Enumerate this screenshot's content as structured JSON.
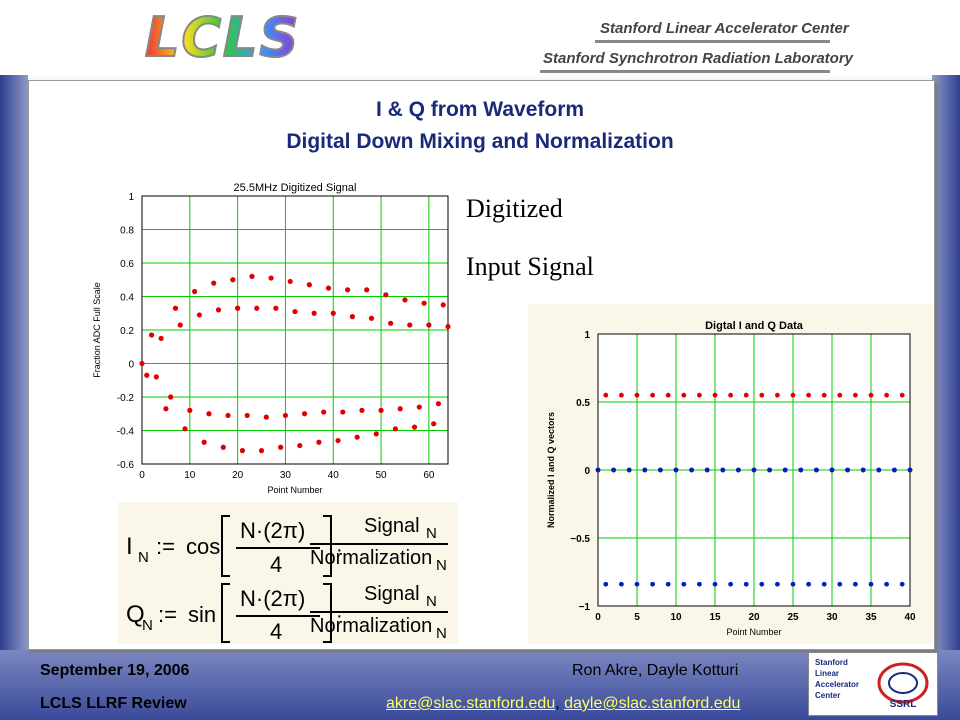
{
  "header": {
    "logo": "LCLS",
    "lab_line1": "Stanford Linear Accelerator Center",
    "lab_line2": "Stanford Synchrotron Radiation Laboratory"
  },
  "title": {
    "line1": "I & Q from Waveform",
    "line2": "Digital Down Mixing and Normalization"
  },
  "captions": {
    "line1": "Digitized",
    "line2": "Input Signal"
  },
  "formula": {
    "i_lhs": "I",
    "q_lhs": "Q",
    "sub": "N",
    "assign": ":=",
    "cos": "cos",
    "sin": "sin",
    "num_frac": "N·(2π)",
    "den_frac": "4",
    "signal": "Signal",
    "normalization": "Normalization"
  },
  "footer": {
    "date": "September 19, 2006",
    "event": "LCLS LLRF Review",
    "authors": "Ron Akre, Dayle Kotturi",
    "email1": "akre@slac.stanford.edu",
    "separator": ", ",
    "email2": "dayle@slac.stanford.edu"
  },
  "slac_logo": {
    "lines": [
      "Stanford",
      "Linear",
      "Accelerator",
      "Center"
    ],
    "ssrl": "SSRL"
  },
  "colors": {
    "title": "#1a2a7a",
    "grid": "#00cc00",
    "point_red": "#e00000",
    "point_blue": "#0020c0",
    "link": "#ffff66"
  },
  "chart_data": [
    {
      "type": "scatter",
      "title": "25.5MHz Digitized Signal",
      "xlabel": "Point Number",
      "ylabel": "Fraction ADC Full Scale",
      "xlim": [
        0,
        64
      ],
      "ylim": [
        -0.6,
        1
      ],
      "xticks": [
        0,
        10,
        20,
        30,
        40,
        50,
        60
      ],
      "yticks": [
        -0.6,
        -0.4,
        -0.2,
        0,
        0.2,
        0.4,
        0.6,
        0.8,
        1
      ],
      "xtick_labels": [
        "0",
        "10",
        "20",
        "30",
        "40",
        "50",
        "60"
      ],
      "ytick_labels": [
        "-0.6",
        "-0.4",
        "-0.2",
        "0",
        "0.2",
        "0.4",
        "0.6",
        "0.8",
        "1"
      ],
      "grid": true,
      "series": [
        {
          "x": [
            0,
            1,
            2,
            3,
            4,
            5,
            6,
            7,
            8,
            9,
            10,
            11,
            12,
            13,
            14,
            15,
            16,
            17,
            18,
            19,
            20,
            21,
            22,
            23,
            24,
            25,
            26,
            27,
            28,
            29,
            30,
            31,
            32,
            33,
            34,
            35,
            36,
            37,
            38,
            39,
            40,
            41,
            42,
            43,
            44,
            45,
            46,
            47,
            48,
            49,
            50,
            51,
            52,
            53,
            54,
            55,
            56,
            57,
            58,
            59,
            60,
            61,
            62,
            63,
            64
          ],
          "y": [
            0.0,
            -0.07,
            0.17,
            -0.08,
            0.15,
            -0.27,
            -0.2,
            0.33,
            0.23,
            -0.39,
            -0.28,
            0.43,
            0.29,
            -0.47,
            -0.3,
            0.48,
            0.32,
            -0.5,
            -0.31,
            0.5,
            0.33,
            -0.52,
            -0.31,
            0.52,
            0.33,
            -0.52,
            -0.32,
            0.51,
            0.33,
            -0.5,
            -0.31,
            0.49,
            0.31,
            -0.49,
            -0.3,
            0.47,
            0.3,
            -0.47,
            -0.29,
            0.45,
            0.3,
            -0.46,
            -0.29,
            0.44,
            0.28,
            -0.44,
            -0.28,
            0.44,
            0.27,
            -0.42,
            -0.28,
            0.41,
            0.24,
            -0.39,
            -0.27,
            0.38,
            0.23,
            -0.38,
            -0.26,
            0.36,
            0.23,
            -0.36,
            -0.24,
            0.35,
            0.22
          ]
        }
      ]
    },
    {
      "type": "scatter",
      "title": "Digtal I and Q Data",
      "xlabel": "Point Number",
      "ylabel": "Normalized I and Q vectors",
      "xlim": [
        0,
        40
      ],
      "ylim": [
        -1,
        1
      ],
      "xticks": [
        0,
        5,
        10,
        15,
        20,
        25,
        30,
        35,
        40
      ],
      "yticks": [
        -1,
        -0.5,
        0,
        0.5,
        1
      ],
      "xtick_labels": [
        "0",
        "5",
        "10",
        "15",
        "20",
        "25",
        "30",
        "35",
        "40"
      ],
      "ytick_labels": [
        "−1",
        "−0.5",
        "0",
        "0.5",
        "1"
      ],
      "grid": true,
      "series": [
        {
          "name": "I",
          "color": "red",
          "x": [
            0,
            1,
            2,
            3,
            4,
            5,
            6,
            7,
            8,
            9,
            10,
            11,
            12,
            13,
            14,
            15,
            16,
            17,
            18,
            19,
            20,
            21,
            22,
            23,
            24,
            25,
            26,
            27,
            28,
            29,
            30,
            31,
            32,
            33,
            34,
            35,
            36,
            37,
            38,
            39,
            40
          ],
          "y": [
            0,
            0.55,
            0,
            0.55,
            0,
            0.55,
            0,
            0.55,
            0,
            0.55,
            0,
            0.55,
            0,
            0.55,
            0,
            0.55,
            0,
            0.55,
            0,
            0.55,
            0,
            0.55,
            0,
            0.55,
            0,
            0.55,
            0,
            0.55,
            0,
            0.55,
            0,
            0.55,
            0,
            0.55,
            0,
            0.55,
            0,
            0.55,
            0,
            0.55,
            0
          ]
        },
        {
          "name": "Q",
          "color": "blue",
          "x": [
            0,
            1,
            2,
            3,
            4,
            5,
            6,
            7,
            8,
            9,
            10,
            11,
            12,
            13,
            14,
            15,
            16,
            17,
            18,
            19,
            20,
            21,
            22,
            23,
            24,
            25,
            26,
            27,
            28,
            29,
            30,
            31,
            32,
            33,
            34,
            35,
            36,
            37,
            38,
            39,
            40
          ],
          "y": [
            0,
            -0.84,
            0,
            -0.84,
            0,
            -0.84,
            0,
            -0.84,
            0,
            -0.84,
            0,
            -0.84,
            0,
            -0.84,
            0,
            -0.84,
            0,
            -0.84,
            0,
            -0.84,
            0,
            -0.84,
            0,
            -0.84,
            0,
            -0.84,
            0,
            -0.84,
            0,
            -0.84,
            0,
            -0.84,
            0,
            -0.84,
            0,
            -0.84,
            0,
            -0.84,
            0,
            -0.84,
            0
          ]
        }
      ]
    }
  ]
}
